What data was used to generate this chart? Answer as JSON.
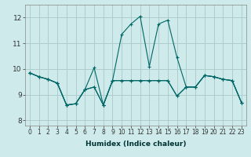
{
  "xlabel": "Humidex (Indice chaleur)",
  "bg_color": "#ceeaea",
  "grid_color": "#aecece",
  "line_color": "#006666",
  "xlim": [
    -0.5,
    23.5
  ],
  "ylim": [
    7.8,
    12.5
  ],
  "yticks": [
    8,
    9,
    10,
    11,
    12
  ],
  "xticks": [
    0,
    1,
    2,
    3,
    4,
    5,
    6,
    7,
    8,
    9,
    10,
    11,
    12,
    13,
    14,
    15,
    16,
    17,
    18,
    19,
    20,
    21,
    22,
    23
  ],
  "series1": [
    9.85,
    9.7,
    9.6,
    9.45,
    8.6,
    8.65,
    9.2,
    9.3,
    8.6,
    9.55,
    9.55,
    9.55,
    9.55,
    9.55,
    9.55,
    9.55,
    8.95,
    9.3,
    9.3,
    9.75,
    9.7,
    9.6,
    9.55,
    8.7
  ],
  "series2": [
    9.85,
    9.7,
    9.6,
    9.45,
    8.6,
    8.65,
    9.2,
    10.05,
    8.6,
    9.55,
    11.35,
    11.75,
    12.05,
    10.1,
    11.75,
    11.9,
    10.45,
    9.3,
    9.3,
    9.75,
    9.7,
    9.6,
    9.55,
    8.7
  ],
  "series3": [
    9.85,
    9.7,
    9.6,
    9.45,
    8.6,
    8.65,
    9.2,
    9.3,
    8.6,
    9.55,
    9.55,
    9.55,
    9.55,
    9.55,
    9.55,
    9.55,
    8.95,
    9.3,
    9.3,
    9.75,
    9.7,
    9.6,
    9.55,
    8.7
  ]
}
